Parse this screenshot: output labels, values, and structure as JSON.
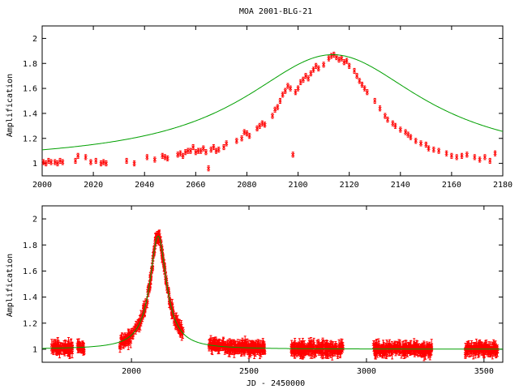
{
  "title": "MOA 2001-BLG-21",
  "colors": {
    "data": "#ff0000",
    "model": "#00a000",
    "axes": "#000000"
  },
  "chart_data": [
    {
      "type": "scatter",
      "title": "MOA 2001-BLG-21",
      "xlabel": "",
      "ylabel": "Amplification",
      "xlim": [
        2000,
        2180
      ],
      "ylim": [
        0.9,
        2.1
      ],
      "xticks": [
        2000,
        2020,
        2040,
        2060,
        2080,
        2100,
        2120,
        2140,
        2160,
        2180
      ],
      "yticks": [
        1,
        1.2,
        1.4,
        1.6,
        1.8,
        2
      ],
      "series": [
        {
          "name": "",
          "kind": "points with error bars",
          "points": [
            [
              2000.5,
              1.01
            ],
            [
              2001.5,
              1.0
            ],
            [
              2002.5,
              1.02
            ],
            [
              2003.5,
              1.01
            ],
            [
              2005,
              1.01
            ],
            [
              2006,
              1.0
            ],
            [
              2007,
              1.02
            ],
            [
              2008,
              1.01
            ],
            [
              2013,
              1.02
            ],
            [
              2014,
              1.06
            ],
            [
              2017,
              1.05
            ],
            [
              2019,
              1.01
            ],
            [
              2021,
              1.02
            ],
            [
              2023,
              1.0
            ],
            [
              2024,
              1.01
            ],
            [
              2025,
              1.0
            ],
            [
              2033,
              1.02
            ],
            [
              2036,
              1.0
            ],
            [
              2041,
              1.05
            ],
            [
              2044,
              1.03
            ],
            [
              2047,
              1.06
            ],
            [
              2048,
              1.05
            ],
            [
              2049,
              1.04
            ],
            [
              2053,
              1.07
            ],
            [
              2054,
              1.08
            ],
            [
              2055,
              1.06
            ],
            [
              2056,
              1.09
            ],
            [
              2057,
              1.1
            ],
            [
              2058,
              1.1
            ],
            [
              2059,
              1.13
            ],
            [
              2060,
              1.09
            ],
            [
              2061,
              1.1
            ],
            [
              2062,
              1.1
            ],
            [
              2063,
              1.12
            ],
            [
              2064,
              1.09
            ],
            [
              2065,
              0.96
            ],
            [
              2066,
              1.11
            ],
            [
              2067,
              1.13
            ],
            [
              2068,
              1.1
            ],
            [
              2069,
              1.11
            ],
            [
              2071,
              1.13
            ],
            [
              2072,
              1.16
            ],
            [
              2076,
              1.18
            ],
            [
              2078,
              1.2
            ],
            [
              2079,
              1.25
            ],
            [
              2080,
              1.24
            ],
            [
              2081,
              1.22
            ],
            [
              2084,
              1.28
            ],
            [
              2085,
              1.3
            ],
            [
              2086,
              1.32
            ],
            [
              2087,
              1.31
            ],
            [
              2090,
              1.38
            ],
            [
              2091,
              1.43
            ],
            [
              2092,
              1.45
            ],
            [
              2093,
              1.5
            ],
            [
              2094,
              1.55
            ],
            [
              2095,
              1.58
            ],
            [
              2096,
              1.62
            ],
            [
              2097,
              1.6
            ],
            [
              2098,
              1.07
            ],
            [
              2099,
              1.57
            ],
            [
              2100,
              1.6
            ],
            [
              2101,
              1.65
            ],
            [
              2102,
              1.67
            ],
            [
              2103,
              1.7
            ],
            [
              2104,
              1.68
            ],
            [
              2105,
              1.72
            ],
            [
              2106,
              1.75
            ],
            [
              2107,
              1.78
            ],
            [
              2108,
              1.76
            ],
            [
              2110,
              1.79
            ],
            [
              2112,
              1.84
            ],
            [
              2113,
              1.86
            ],
            [
              2114,
              1.87
            ],
            [
              2115,
              1.85
            ],
            [
              2116,
              1.83
            ],
            [
              2117,
              1.84
            ],
            [
              2118,
              1.81
            ],
            [
              2119,
              1.82
            ],
            [
              2120,
              1.78
            ],
            [
              2122,
              1.74
            ],
            [
              2123,
              1.7
            ],
            [
              2124,
              1.66
            ],
            [
              2125,
              1.63
            ],
            [
              2126,
              1.6
            ],
            [
              2127,
              1.57
            ],
            [
              2130,
              1.5
            ],
            [
              2132,
              1.44
            ],
            [
              2134,
              1.38
            ],
            [
              2135,
              1.35
            ],
            [
              2137,
              1.32
            ],
            [
              2138,
              1.3
            ],
            [
              2140,
              1.27
            ],
            [
              2142,
              1.25
            ],
            [
              2143,
              1.23
            ],
            [
              2144,
              1.21
            ],
            [
              2146,
              1.18
            ],
            [
              2148,
              1.16
            ],
            [
              2150,
              1.15
            ],
            [
              2151,
              1.12
            ],
            [
              2153,
              1.11
            ],
            [
              2155,
              1.1
            ],
            [
              2158,
              1.08
            ],
            [
              2160,
              1.06
            ],
            [
              2162,
              1.05
            ],
            [
              2164,
              1.06
            ],
            [
              2166,
              1.07
            ],
            [
              2169,
              1.05
            ],
            [
              2171,
              1.03
            ],
            [
              2173,
              1.05
            ],
            [
              2175,
              1.02
            ],
            [
              2177,
              1.08
            ]
          ]
        },
        {
          "name": "",
          "kind": "model curve",
          "model": {
            "baseline": 1.0,
            "peak_time": 2113.5,
            "peak_amplification": 1.87,
            "tE": 40
          }
        }
      ]
    },
    {
      "type": "scatter",
      "title": "",
      "xlabel": "JD - 2450000",
      "ylabel": "Amplification",
      "xlim": [
        1620,
        3580
      ],
      "ylim": [
        0.9,
        2.1
      ],
      "xticks": [
        2000,
        2500,
        3000,
        3500
      ],
      "yticks": [
        1,
        1.2,
        1.4,
        1.6,
        1.8,
        2
      ],
      "series": [
        {
          "name": "",
          "kind": "points with error bars",
          "observing_seasons": [
            [
              1660,
              1750
            ],
            [
              1770,
              1800
            ],
            [
              1950,
              2220
            ],
            [
              2330,
              2570
            ],
            [
              2680,
              2900
            ],
            [
              3030,
              3280
            ],
            [
              3420,
              3560
            ]
          ],
          "baseline": 1.0,
          "scatter": 0.04
        },
        {
          "name": "",
          "kind": "model curve",
          "model": {
            "baseline": 1.0,
            "peak_time": 2113.5,
            "peak_amplification": 1.87,
            "tE": 40
          }
        }
      ]
    }
  ]
}
